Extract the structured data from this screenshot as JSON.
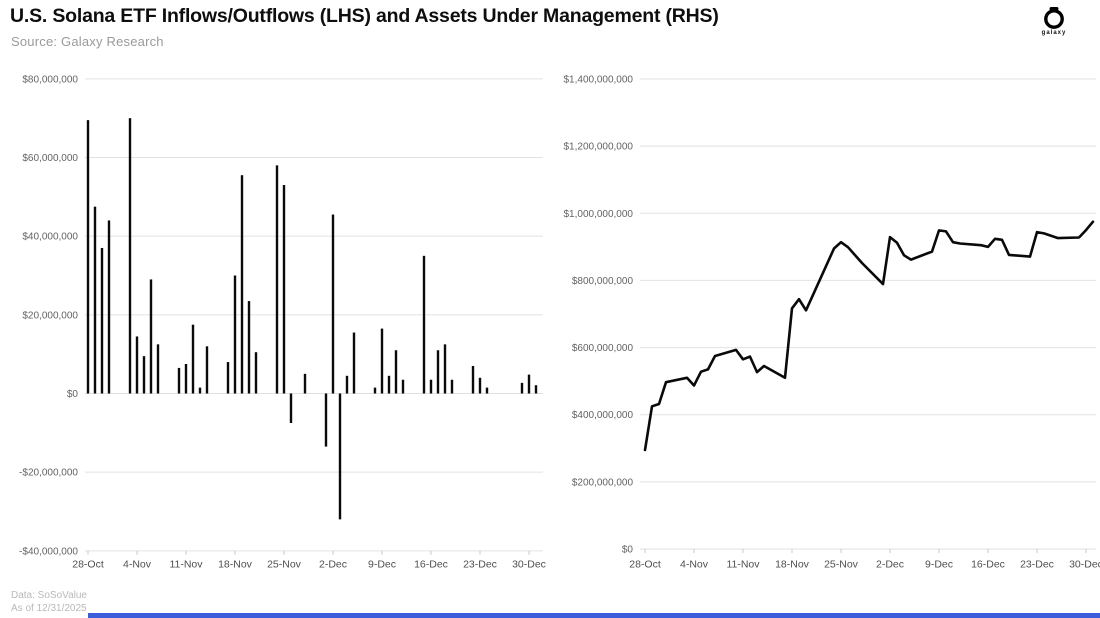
{
  "header": {
    "title": "U.S. Solana ETF Inflows/Outflows (LHS) and Assets Under Management (RHS)",
    "source": "Source: Galaxy Research",
    "logo_text": "galaxy"
  },
  "footer": {
    "line1": "Data: SoSoValue",
    "line2": "As of 12/31/2025"
  },
  "colors": {
    "bar": "#0a0a0a",
    "line": "#0a0a0a",
    "grid": "#e2e2e2",
    "tick": "#c9c9c9",
    "y_axis_text": "#636363",
    "x_axis_text": "#4f4f4f",
    "accent_bar": "#3b5cdb"
  },
  "chart_data": [
    {
      "name": "us_solana_etf_daily_inflows_outflows_lhs",
      "type": "bar",
      "grid": true,
      "legend": "none",
      "ylim": [
        -40000000,
        80000000
      ],
      "ytick_labels": [
        "$80,000,000",
        "$60,000,000",
        "$40,000,000",
        "$20,000,000",
        "$0",
        "-$20,000,000",
        "-$40,000,000"
      ],
      "ytick_values_musd": [
        80,
        60,
        40,
        20,
        0,
        -20,
        -40
      ],
      "xtick_labels": [
        "28-Oct",
        "4-Nov",
        "11-Nov",
        "18-Nov",
        "25-Nov",
        "2-Dec",
        "9-Dec",
        "16-Dec",
        "23-Dec",
        "30-Dec"
      ],
      "xtick_week_offsets": [
        0,
        7,
        14,
        21,
        28,
        35,
        42,
        49,
        56,
        63
      ],
      "dates": [
        "28-Oct",
        "29-Oct",
        "30-Oct",
        "31-Oct",
        "3-Nov",
        "4-Nov",
        "5-Nov",
        "6-Nov",
        "7-Nov",
        "10-Nov",
        "11-Nov",
        "12-Nov",
        "13-Nov",
        "14-Nov",
        "17-Nov",
        "18-Nov",
        "19-Nov",
        "20-Nov",
        "21-Nov",
        "24-Nov",
        "25-Nov",
        "26-Nov",
        "28-Nov",
        "1-Dec",
        "2-Dec",
        "3-Dec",
        "4-Dec",
        "5-Dec",
        "8-Dec",
        "9-Dec",
        "10-Dec",
        "11-Dec",
        "12-Dec",
        "15-Dec",
        "16-Dec",
        "17-Dec",
        "18-Dec",
        "19-Dec",
        "22-Dec",
        "23-Dec",
        "24-Dec",
        "29-Dec",
        "30-Dec",
        "31-Dec"
      ],
      "day_offsets": [
        0,
        1,
        2,
        3,
        6,
        7,
        8,
        9,
        10,
        13,
        14,
        15,
        16,
        17,
        20,
        21,
        22,
        23,
        24,
        27,
        28,
        29,
        31,
        34,
        35,
        36,
        37,
        38,
        41,
        42,
        43,
        44,
        45,
        48,
        49,
        50,
        51,
        52,
        55,
        56,
        57,
        62,
        63,
        64
      ],
      "values_musd": [
        69.5,
        47.5,
        37,
        44,
        70,
        14.5,
        9.5,
        29,
        12.5,
        6.5,
        7.5,
        17.5,
        1.5,
        12,
        8,
        30,
        55.5,
        23.5,
        10.5,
        58,
        53,
        -7.5,
        5,
        -13.5,
        45.5,
        -32,
        4.5,
        15.5,
        1.5,
        16.5,
        4.5,
        11,
        3.5,
        35,
        3.5,
        11,
        12.5,
        3.5,
        7,
        4,
        1.5,
        2.7,
        4.8,
        2.1
      ]
    },
    {
      "name": "us_solana_etf_assets_under_management_rhs",
      "type": "line",
      "grid": true,
      "legend": "none",
      "ylim": [
        0,
        1400000000
      ],
      "ytick_labels": [
        "$1,400,000,000",
        "$1,200,000,000",
        "$1,000,000,000",
        "$800,000,000",
        "$600,000,000",
        "$400,000,000",
        "$200,000,000",
        "$0"
      ],
      "ytick_values_musd": [
        1400,
        1200,
        1000,
        800,
        600,
        400,
        200,
        0
      ],
      "xtick_labels": [
        "28-Oct",
        "4-Nov",
        "11-Nov",
        "18-Nov",
        "25-Nov",
        "2-Dec",
        "9-Dec",
        "16-Dec",
        "23-Dec",
        "30-Dec"
      ],
      "xtick_week_offsets": [
        0,
        7,
        14,
        21,
        28,
        35,
        42,
        49,
        56,
        63
      ],
      "dates": [
        "28-Oct",
        "29-Oct",
        "30-Oct",
        "31-Oct",
        "3-Nov",
        "4-Nov",
        "5-Nov",
        "6-Nov",
        "7-Nov",
        "10-Nov",
        "11-Nov",
        "12-Nov",
        "13-Nov",
        "14-Nov",
        "17-Nov",
        "18-Nov",
        "19-Nov",
        "20-Nov",
        "21-Nov",
        "24-Nov",
        "25-Nov",
        "26-Nov",
        "28-Nov",
        "1-Dec",
        "2-Dec",
        "3-Dec",
        "4-Dec",
        "5-Dec",
        "8-Dec",
        "9-Dec",
        "10-Dec",
        "11-Dec",
        "12-Dec",
        "15-Dec",
        "16-Dec",
        "17-Dec",
        "18-Dec",
        "19-Dec",
        "22-Dec",
        "23-Dec",
        "24-Dec",
        "26-Dec",
        "29-Dec",
        "30-Dec",
        "31-Dec"
      ],
      "day_offsets": [
        0,
        1,
        2,
        3,
        6,
        7,
        8,
        9,
        10,
        13,
        14,
        15,
        16,
        17,
        20,
        21,
        22,
        23,
        24,
        27,
        28,
        29,
        31,
        34,
        35,
        36,
        37,
        38,
        41,
        42,
        43,
        44,
        45,
        48,
        49,
        50,
        51,
        52,
        55,
        56,
        57,
        59,
        62,
        63,
        64
      ],
      "values_musd": [
        295,
        425,
        432,
        497,
        510,
        487,
        528,
        535,
        575,
        593,
        565,
        573,
        527,
        545,
        510,
        717,
        744,
        711,
        757,
        895,
        914,
        899,
        852,
        789,
        929,
        912,
        875,
        862,
        886,
        949,
        946,
        914,
        910,
        905,
        900,
        924,
        921,
        876,
        871,
        944,
        940,
        926,
        928,
        950,
        975
      ]
    }
  ]
}
